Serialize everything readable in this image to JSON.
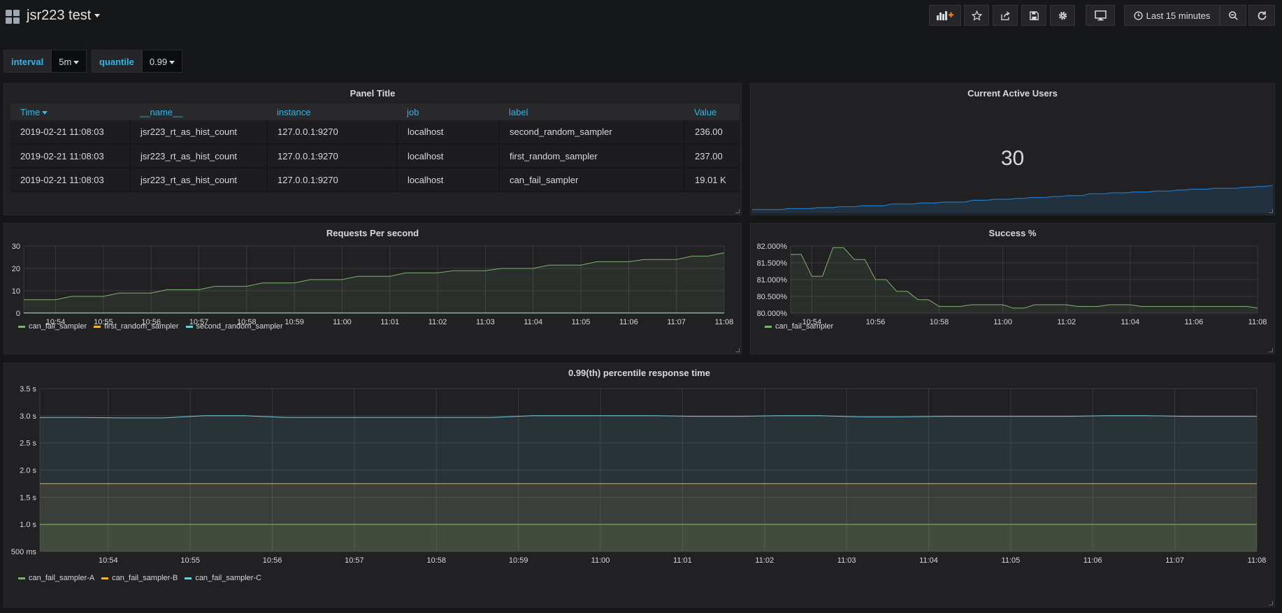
{
  "header": {
    "title": "jsr223 test",
    "time_range": "Last 15 minutes"
  },
  "variables": [
    {
      "label": "interval",
      "value": "5m"
    },
    {
      "label": "quantile",
      "value": "0.99"
    }
  ],
  "colors": {
    "accent": "#33b5e5",
    "green": "#7eb26d",
    "yellow": "#eab839",
    "cyan": "#6ed0e0",
    "blue": "#1f78c1"
  },
  "table_panel": {
    "title": "Panel Title",
    "columns": [
      "Time",
      "__name__",
      "instance",
      "job",
      "label",
      "Value"
    ],
    "rows": [
      [
        "2019-02-21 11:08:03",
        "jsr223_rt_as_hist_count",
        "127.0.0.1:9270",
        "localhost",
        "second_random_sampler",
        "236.00"
      ],
      [
        "2019-02-21 11:08:03",
        "jsr223_rt_as_hist_count",
        "127.0.0.1:9270",
        "localhost",
        "first_random_sampler",
        "237.00"
      ],
      [
        "2019-02-21 11:08:03",
        "jsr223_rt_as_hist_count",
        "127.0.0.1:9270",
        "localhost",
        "can_fail_sampler",
        "19.01 K"
      ]
    ]
  },
  "stat_panel": {
    "title": "Current Active Users",
    "value": "30",
    "sparkline": [
      1,
      1,
      1,
      1,
      1,
      2,
      2,
      2,
      2,
      3,
      3,
      3,
      4,
      4,
      4,
      5,
      5,
      5,
      5,
      7,
      7,
      7,
      7,
      8,
      8,
      8,
      9,
      9,
      9,
      9,
      11,
      11,
      11,
      12,
      12,
      12,
      13,
      13,
      14,
      14,
      14,
      15,
      15,
      16,
      16,
      16,
      18,
      18,
      18,
      19,
      19,
      19,
      20,
      20,
      20,
      21,
      21,
      21,
      22,
      22,
      23,
      23,
      23,
      24,
      24,
      24,
      24,
      25,
      25,
      26,
      26,
      27
    ]
  },
  "rps_panel": {
    "title": "Requests Per second",
    "legend": [
      "can_fail_sampler",
      "first_random_sampler",
      "second_random_sampler"
    ]
  },
  "success_panel": {
    "title": "Success %",
    "legend": [
      "can_fail_sampler"
    ]
  },
  "rt_panel": {
    "title": "0.99(th) percentile response time",
    "legend": [
      "can_fail_sampler-A",
      "can_fail_sampler-B",
      "can_fail_sampler-C"
    ]
  },
  "chart_data": [
    {
      "id": "rps",
      "type": "line",
      "title": "Requests Per second",
      "x_ticks": [
        "10:54",
        "10:55",
        "10:56",
        "10:57",
        "10:58",
        "10:59",
        "11:00",
        "11:01",
        "11:02",
        "11:03",
        "11:04",
        "11:05",
        "11:06",
        "11:07",
        "11:08"
      ],
      "y_ticks": [
        "0",
        "10",
        "20",
        "30"
      ],
      "ylim": [
        0,
        30
      ],
      "x": [
        "10:53:20",
        "10:53:40",
        "10:54:00",
        "10:54:20",
        "10:54:40",
        "10:55:00",
        "10:55:20",
        "10:55:40",
        "10:56:00",
        "10:56:20",
        "10:56:40",
        "10:57:00",
        "10:57:20",
        "10:57:40",
        "10:58:00",
        "10:58:20",
        "10:58:40",
        "10:59:00",
        "10:59:20",
        "10:59:40",
        "11:00:00",
        "11:00:20",
        "11:00:40",
        "11:01:00",
        "11:01:20",
        "11:01:40",
        "11:02:00",
        "11:02:20",
        "11:02:40",
        "11:03:00",
        "11:03:20",
        "11:03:40",
        "11:04:00",
        "11:04:20",
        "11:04:40",
        "11:05:00",
        "11:05:20",
        "11:05:40",
        "11:06:00",
        "11:06:20",
        "11:06:40",
        "11:07:00",
        "11:07:20",
        "11:07:40",
        "11:08:00"
      ],
      "series": [
        {
          "name": "can_fail_sampler",
          "color": "#7eb26d",
          "fill": true,
          "values": [
            6,
            6,
            6,
            7.5,
            7.5,
            7.5,
            9,
            9,
            9,
            10.5,
            10.5,
            10.5,
            12,
            12,
            12,
            13.5,
            13.5,
            13.5,
            15,
            15,
            15,
            16.5,
            16.5,
            16.5,
            18,
            18,
            18,
            19,
            19,
            19,
            20,
            20,
            20,
            21.5,
            21.5,
            21.5,
            23,
            23,
            23,
            24,
            24,
            24,
            25.5,
            25.5,
            27
          ]
        },
        {
          "name": "first_random_sampler",
          "color": "#eab839",
          "fill": false,
          "values": [
            0.05,
            0.05,
            0.05,
            0.05,
            0.05,
            0.05,
            0.05,
            0.05,
            0.05,
            0.05,
            0.05,
            0.05,
            0.05,
            0.05,
            0.05,
            0.05,
            0.05,
            0.05,
            0.05,
            0.05,
            0.05,
            0.05,
            0.05,
            0.05,
            0.05,
            0.05,
            0.05,
            0.05,
            0.05,
            0.05,
            0.05,
            0.05,
            0.05,
            0.05,
            0.05,
            0.05,
            0.05,
            0.05,
            0.05,
            0.05,
            0.05,
            0.05,
            0.05,
            0.05,
            0.05
          ]
        },
        {
          "name": "second_random_sampler",
          "color": "#6ed0e0",
          "fill": false,
          "values": [
            0.05,
            0.05,
            0.05,
            0.05,
            0.05,
            0.05,
            0.05,
            0.05,
            0.05,
            0.05,
            0.05,
            0.05,
            0.05,
            0.05,
            0.05,
            0.05,
            0.05,
            0.05,
            0.05,
            0.05,
            0.05,
            0.05,
            0.05,
            0.05,
            0.05,
            0.05,
            0.05,
            0.05,
            0.05,
            0.05,
            0.05,
            0.05,
            0.05,
            0.05,
            0.05,
            0.05,
            0.05,
            0.05,
            0.05,
            0.05,
            0.05,
            0.05,
            0.05,
            0.05,
            0.05
          ]
        }
      ]
    },
    {
      "id": "success",
      "type": "line",
      "title": "Success %",
      "x_ticks": [
        "10:54",
        "10:56",
        "10:58",
        "11:00",
        "11:02",
        "11:04",
        "11:06",
        "11:08"
      ],
      "y_ticks": [
        "80.000%",
        "80.500%",
        "81.000%",
        "81.500%",
        "82.000%"
      ],
      "ylim": [
        80,
        82
      ],
      "x": [
        "10:53:20",
        "10:53:40",
        "10:54:00",
        "10:54:20",
        "10:54:40",
        "10:55:00",
        "10:55:20",
        "10:55:40",
        "10:56:00",
        "10:56:20",
        "10:56:40",
        "10:57:00",
        "10:57:20",
        "10:57:40",
        "10:58:00",
        "10:58:20",
        "10:58:40",
        "10:59:00",
        "10:59:20",
        "10:59:40",
        "11:00:00",
        "11:00:20",
        "11:00:40",
        "11:01:00",
        "11:01:20",
        "11:01:40",
        "11:02:00",
        "11:02:20",
        "11:02:40",
        "11:03:00",
        "11:03:20",
        "11:03:40",
        "11:04:00",
        "11:04:20",
        "11:04:40",
        "11:05:00",
        "11:05:20",
        "11:05:40",
        "11:06:00",
        "11:06:20",
        "11:06:40",
        "11:07:00",
        "11:07:20",
        "11:07:40",
        "11:08:00"
      ],
      "series": [
        {
          "name": "can_fail_sampler",
          "color": "#7eb26d",
          "fill": true,
          "values": [
            81.75,
            81.75,
            81.1,
            81.1,
            81.95,
            81.95,
            81.6,
            81.6,
            81.0,
            81.0,
            80.65,
            80.65,
            80.4,
            80.4,
            80.2,
            80.2,
            80.2,
            80.25,
            80.25,
            80.25,
            80.25,
            80.15,
            80.15,
            80.25,
            80.25,
            80.25,
            80.25,
            80.2,
            80.2,
            80.2,
            80.25,
            80.25,
            80.25,
            80.2,
            80.2,
            80.2,
            80.2,
            80.2,
            80.2,
            80.2,
            80.2,
            80.2,
            80.2,
            80.2,
            80.15
          ]
        }
      ]
    },
    {
      "id": "rt",
      "type": "line",
      "title": "0.99(th) percentile response time",
      "x_ticks": [
        "10:54",
        "10:55",
        "10:56",
        "10:57",
        "10:58",
        "10:59",
        "11:00",
        "11:01",
        "11:02",
        "11:03",
        "11:04",
        "11:05",
        "11:06",
        "11:07",
        "11:08"
      ],
      "y_ticks": [
        "500 ms",
        "1.0 s",
        "1.5 s",
        "2.0 s",
        "2.5 s",
        "3.0 s",
        "3.5 s"
      ],
      "ylim": [
        0.5,
        3.5
      ],
      "x": [
        "10:53:10",
        "10:53:40",
        "10:54:10",
        "10:54:40",
        "10:55:10",
        "10:55:40",
        "10:56:10",
        "10:56:40",
        "10:57:10",
        "10:57:40",
        "10:58:10",
        "10:58:40",
        "10:59:10",
        "10:59:40",
        "11:00:10",
        "11:00:40",
        "11:01:10",
        "11:01:40",
        "11:02:10",
        "11:02:40",
        "11:03:10",
        "11:03:40",
        "11:04:10",
        "11:04:40",
        "11:05:10",
        "11:05:40",
        "11:06:10",
        "11:06:40",
        "11:07:10",
        "11:07:40",
        "11:08:00"
      ],
      "series": [
        {
          "name": "can_fail_sampler-A",
          "color": "#7eb26d",
          "fill": true,
          "values": [
            1.0,
            1.0,
            1.0,
            1.0,
            1.0,
            1.0,
            1.0,
            1.0,
            1.0,
            1.0,
            1.0,
            1.0,
            1.0,
            1.0,
            1.0,
            1.0,
            1.0,
            1.0,
            1.0,
            1.0,
            1.0,
            1.0,
            1.0,
            1.0,
            1.0,
            1.0,
            1.0,
            1.0,
            1.0,
            1.0,
            1.0
          ]
        },
        {
          "name": "can_fail_sampler-B",
          "color": "#eab839",
          "fill": true,
          "values": [
            1.75,
            1.75,
            1.75,
            1.75,
            1.75,
            1.75,
            1.75,
            1.75,
            1.75,
            1.75,
            1.75,
            1.75,
            1.75,
            1.75,
            1.75,
            1.75,
            1.75,
            1.75,
            1.75,
            1.75,
            1.75,
            1.75,
            1.75,
            1.75,
            1.75,
            1.75,
            1.75,
            1.75,
            1.75,
            1.75,
            1.75
          ]
        },
        {
          "name": "can_fail_sampler-C",
          "color": "#6ed0e0",
          "fill": true,
          "values": [
            2.97,
            2.97,
            2.96,
            2.96,
            3.0,
            3.0,
            2.97,
            2.97,
            2.97,
            2.97,
            2.97,
            2.97,
            3.0,
            3.0,
            3.0,
            3.0,
            2.99,
            2.99,
            3.0,
            3.0,
            2.98,
            2.98,
            2.99,
            2.99,
            2.99,
            2.99,
            3.0,
            3.0,
            2.99,
            2.99,
            2.99
          ]
        }
      ]
    }
  ]
}
